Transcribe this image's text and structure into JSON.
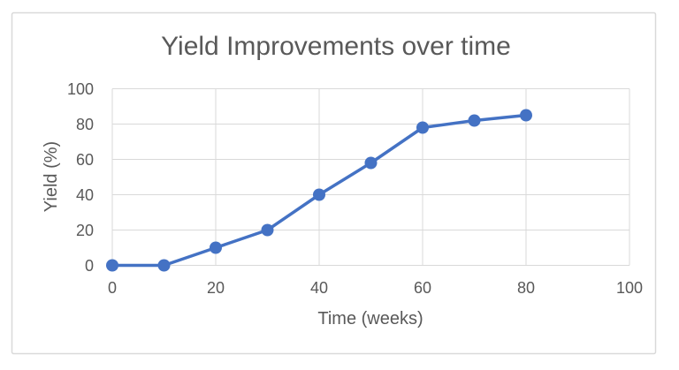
{
  "chart_data": {
    "type": "line",
    "title": "Yield Improvements over time",
    "xlabel": "Time (weeks)",
    "ylabel": "Yield (%)",
    "x": [
      0,
      10,
      20,
      30,
      40,
      50,
      60,
      70,
      80
    ],
    "y": [
      0,
      0,
      10,
      20,
      40,
      58,
      78,
      82,
      85
    ],
    "series": [
      {
        "name": "Yield",
        "x": [
          0,
          10,
          20,
          30,
          40,
          50,
          60,
          70,
          80
        ],
        "values": [
          0,
          0,
          10,
          20,
          40,
          58,
          78,
          82,
          85
        ]
      }
    ],
    "xlim": [
      0,
      100
    ],
    "ylim": [
      0,
      100
    ],
    "x_ticks": [
      0,
      20,
      40,
      60,
      80,
      100
    ],
    "y_ticks": [
      0,
      20,
      40,
      60,
      80,
      100
    ],
    "grid": "both",
    "legend_position": "none",
    "marker": "circle",
    "colors": {
      "series": "#4472C4",
      "gridline": "#D9D9D9",
      "frame_border": "#D9D9D9",
      "text": "#595959",
      "background": "#FFFFFF"
    }
  }
}
